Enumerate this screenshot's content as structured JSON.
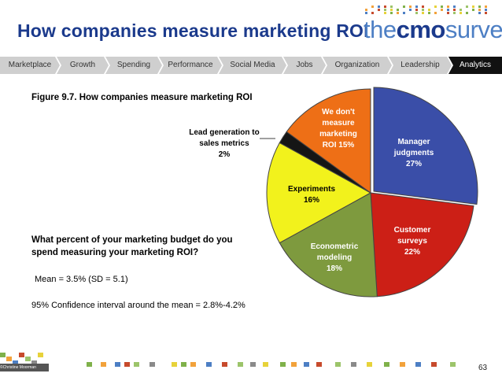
{
  "title": "How companies measure marketing ROI",
  "logo": {
    "prefix": "the",
    "brand": "cmo",
    "suffix": "survey"
  },
  "nav": {
    "tabs": [
      {
        "label": "Marketplace",
        "active": false
      },
      {
        "label": "Growth",
        "active": false
      },
      {
        "label": "Spending",
        "active": false
      },
      {
        "label": "Performance",
        "active": false
      },
      {
        "label": "Social Media",
        "active": false
      },
      {
        "label": "Jobs",
        "active": false
      },
      {
        "label": "Organization",
        "active": false
      },
      {
        "label": "Leadership",
        "active": false
      },
      {
        "label": "Analytics",
        "active": true
      }
    ]
  },
  "figure_caption": "Figure 9.7.  How companies measure marketing ROI",
  "question": "What percent of your marketing budget do you spend measuring your marketing ROI?",
  "stat_mean": "Mean = 3.5% (SD = 5.1)",
  "stat_ci": "95% Confidence interval around the mean = 2.8%-4.2%",
  "page_number": "63",
  "footer_logo": "©Christine Moorman",
  "chart_data": {
    "type": "pie",
    "start_angle_deg": 0,
    "slices": [
      {
        "label": "Manager judgments",
        "value": 27,
        "display": "Manager\njudgments\n27%",
        "color": "#3a4ea8"
      },
      {
        "label": "Customer surveys",
        "value": 22,
        "display": "Customer\nsurveys\n22%",
        "color": "#cc1f16"
      },
      {
        "label": "Econometric modeling",
        "value": 18,
        "display": "Econometric\nmodeling\n18%",
        "color": "#7e9a3e"
      },
      {
        "label": "Experiments",
        "value": 16,
        "display": "Experiments\n16%",
        "color": "#f2f21c"
      },
      {
        "label": "Lead generation to sales metrics",
        "value": 2,
        "display": "Lead generation to\nsales metrics\n2%",
        "color": "#151515"
      },
      {
        "label": "We don't measure marketing ROI",
        "value": 15,
        "display": "We don't\nmeasure\nmarketing\nROI 15%",
        "color": "#ee6f16"
      }
    ]
  },
  "colors": {
    "title": "#1b3a8c",
    "nav_active": "#111111",
    "nav_inactive": "#cfcfcf"
  }
}
